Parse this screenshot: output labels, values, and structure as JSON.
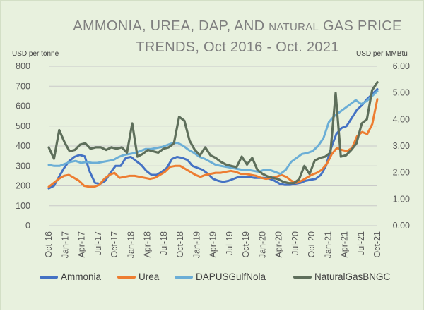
{
  "chart_data": {
    "type": "line",
    "title_part1": "AMMONIA, UREA, DAP, AND ",
    "title_small": "NATURAL",
    "title_part2": " GAS PRICE",
    "title_line2": "TRENDS, Oct 2016 - Oct. 2021",
    "left_axis_label": "USD per tonne",
    "right_axis_label": "USD per MMBtu",
    "ylim": [
      0,
      800
    ],
    "y2lim": [
      0,
      6
    ],
    "y_ticks": [
      "0",
      "100",
      "200",
      "300",
      "400",
      "500",
      "600",
      "700",
      "800"
    ],
    "y2_ticks": [
      "0.00",
      "1.00",
      "2.00",
      "3.00",
      "4.00",
      "5.00",
      "6.00"
    ],
    "x_labels": [
      "Oct-16",
      "Jan-17",
      "Apr-17",
      "Jul-17",
      "Oct-17",
      "Jan-18",
      "Apr-18",
      "Jul-18",
      "Oct-18",
      "Jan-19",
      "Apr-19",
      "Jul-19",
      "Oct-19",
      "Jan-20",
      "Apr-20",
      "Jul-20",
      "Oct-20",
      "Jan-21",
      "Apr-21",
      "Jul-21",
      "Oct-21"
    ],
    "grid": true,
    "legend_position": "bottom",
    "series": [
      {
        "name": "Ammonia",
        "color": "#4472c4",
        "axis": "left",
        "values": [
          187,
          200,
          245,
          290,
          325,
          345,
          355,
          348,
          270,
          215,
          210,
          225,
          265,
          300,
          300,
          340,
          345,
          325,
          305,
          275,
          255,
          255,
          270,
          290,
          335,
          345,
          340,
          330,
          300,
          290,
          280,
          260,
          235,
          225,
          220,
          225,
          235,
          245,
          245,
          245,
          240,
          240,
          240,
          235,
          225,
          210,
          205,
          205,
          210,
          215,
          225,
          230,
          235,
          255,
          300,
          390,
          460,
          490,
          500,
          540,
          580,
          605,
          635,
          660,
          685
        ]
      },
      {
        "name": "Urea",
        "color": "#ed7d31",
        "axis": "left",
        "values": [
          195,
          215,
          235,
          250,
          255,
          240,
          225,
          200,
          195,
          195,
          205,
          235,
          255,
          265,
          240,
          245,
          250,
          250,
          245,
          240,
          235,
          240,
          255,
          270,
          295,
          300,
          300,
          285,
          270,
          255,
          245,
          255,
          260,
          265,
          265,
          270,
          275,
          270,
          260,
          260,
          255,
          250,
          240,
          235,
          240,
          245,
          255,
          245,
          225,
          215,
          225,
          240,
          255,
          265,
          280,
          310,
          360,
          390,
          380,
          375,
          390,
          450,
          470,
          460,
          510,
          635
        ]
      },
      {
        "name": "DAPUSGulfNola",
        "color": "#6baed6",
        "axis": "left",
        "values": [
          305,
          300,
          300,
          310,
          320,
          325,
          315,
          320,
          315,
          315,
          320,
          325,
          330,
          345,
          355,
          360,
          365,
          375,
          385,
          385,
          390,
          395,
          405,
          415,
          415,
          400,
          380,
          365,
          345,
          335,
          320,
          305,
          300,
          295,
          290,
          285,
          280,
          280,
          275,
          270,
          280,
          280,
          270,
          260,
          280,
          320,
          340,
          360,
          365,
          375,
          400,
          440,
          520,
          550,
          570,
          590,
          610,
          630,
          610,
          625,
          650,
          675
        ]
      },
      {
        "name": "NaturalGasBNGC",
        "color": "#5e6f5b",
        "axis": "right",
        "values": [
          2.95,
          2.52,
          3.6,
          3.15,
          2.8,
          2.85,
          3.05,
          3.1,
          2.9,
          2.95,
          2.95,
          2.85,
          2.95,
          2.9,
          2.95,
          2.75,
          3.85,
          2.6,
          2.7,
          2.85,
          2.8,
          2.75,
          2.9,
          2.95,
          3.1,
          4.1,
          3.95,
          3.2,
          2.85,
          2.65,
          2.95,
          2.65,
          2.55,
          2.4,
          2.3,
          2.25,
          2.2,
          2.6,
          2.3,
          2.55,
          2.1,
          1.95,
          1.85,
          1.8,
          1.75,
          1.65,
          1.6,
          1.6,
          1.75,
          2.25,
          1.95,
          2.45,
          2.55,
          2.6,
          2.75,
          5.0,
          2.6,
          2.65,
          2.85,
          3.1,
          3.85,
          4.0,
          5.1,
          5.4
        ]
      }
    ]
  }
}
